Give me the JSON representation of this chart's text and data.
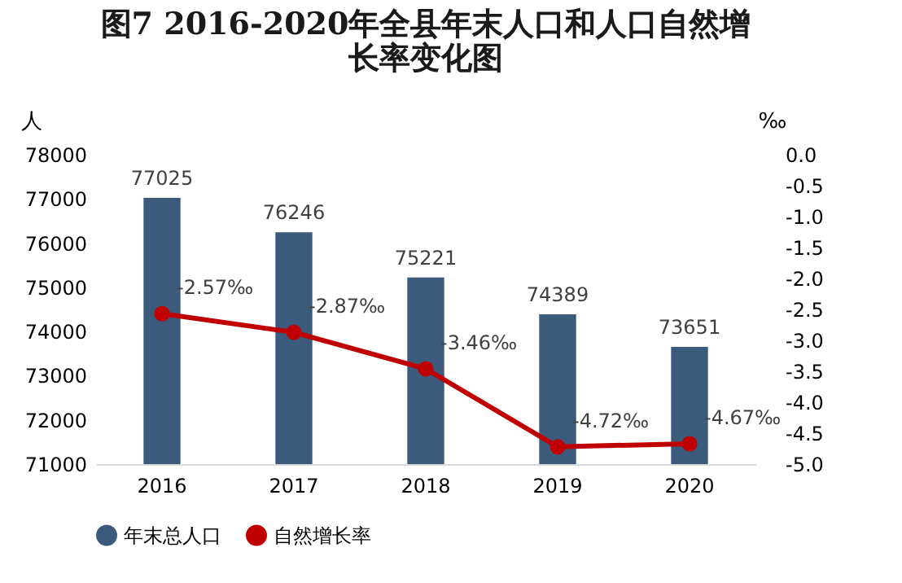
{
  "chart_data": {
    "type": "bar",
    "title": "图7  2016-2020年全县年末人口和人口自然增长率变化图",
    "ylabel": "人",
    "y2label": "‰",
    "categories": [
      "2016",
      "2017",
      "2018",
      "2019",
      "2020"
    ],
    "series": [
      {
        "name": "年末总人口",
        "color": "#3b5a7c",
        "values": [
          77025,
          76246,
          75221,
          74389,
          73651
        ],
        "value_labels": [
          "77025",
          "76246",
          "75221",
          "74389",
          "73651"
        ]
      },
      {
        "name": "自然增长率",
        "type": "line",
        "axis": "y2",
        "color": "#c00000",
        "values": [
          -2.57,
          -2.87,
          -3.46,
          -4.72,
          -4.67
        ],
        "value_labels": [
          "-2.57‰",
          "-2.87‰",
          "-3.46‰",
          "-4.72‰",
          "-4.67‰"
        ]
      }
    ],
    "ylim": [
      71000,
      78000
    ],
    "yticks": [
      71000,
      72000,
      73000,
      74000,
      75000,
      76000,
      77000,
      78000
    ],
    "y2lim": [
      -5,
      0
    ],
    "y2ticks": [
      {
        "value": -5,
        "label": "-5.0"
      },
      -4.5,
      {
        "value": -4,
        "label": "-4.0"
      },
      -3.5,
      {
        "value": -3,
        "label": "-3.0"
      },
      -2.5,
      {
        "value": -2,
        "label": "-2.0"
      },
      -1.5,
      {
        "value": -1,
        "label": "-1.0"
      },
      -0.5,
      {
        "value": 0,
        "label": "0.0"
      }
    ],
    "grid": false,
    "legend": "bottom",
    "marker": "circle"
  }
}
